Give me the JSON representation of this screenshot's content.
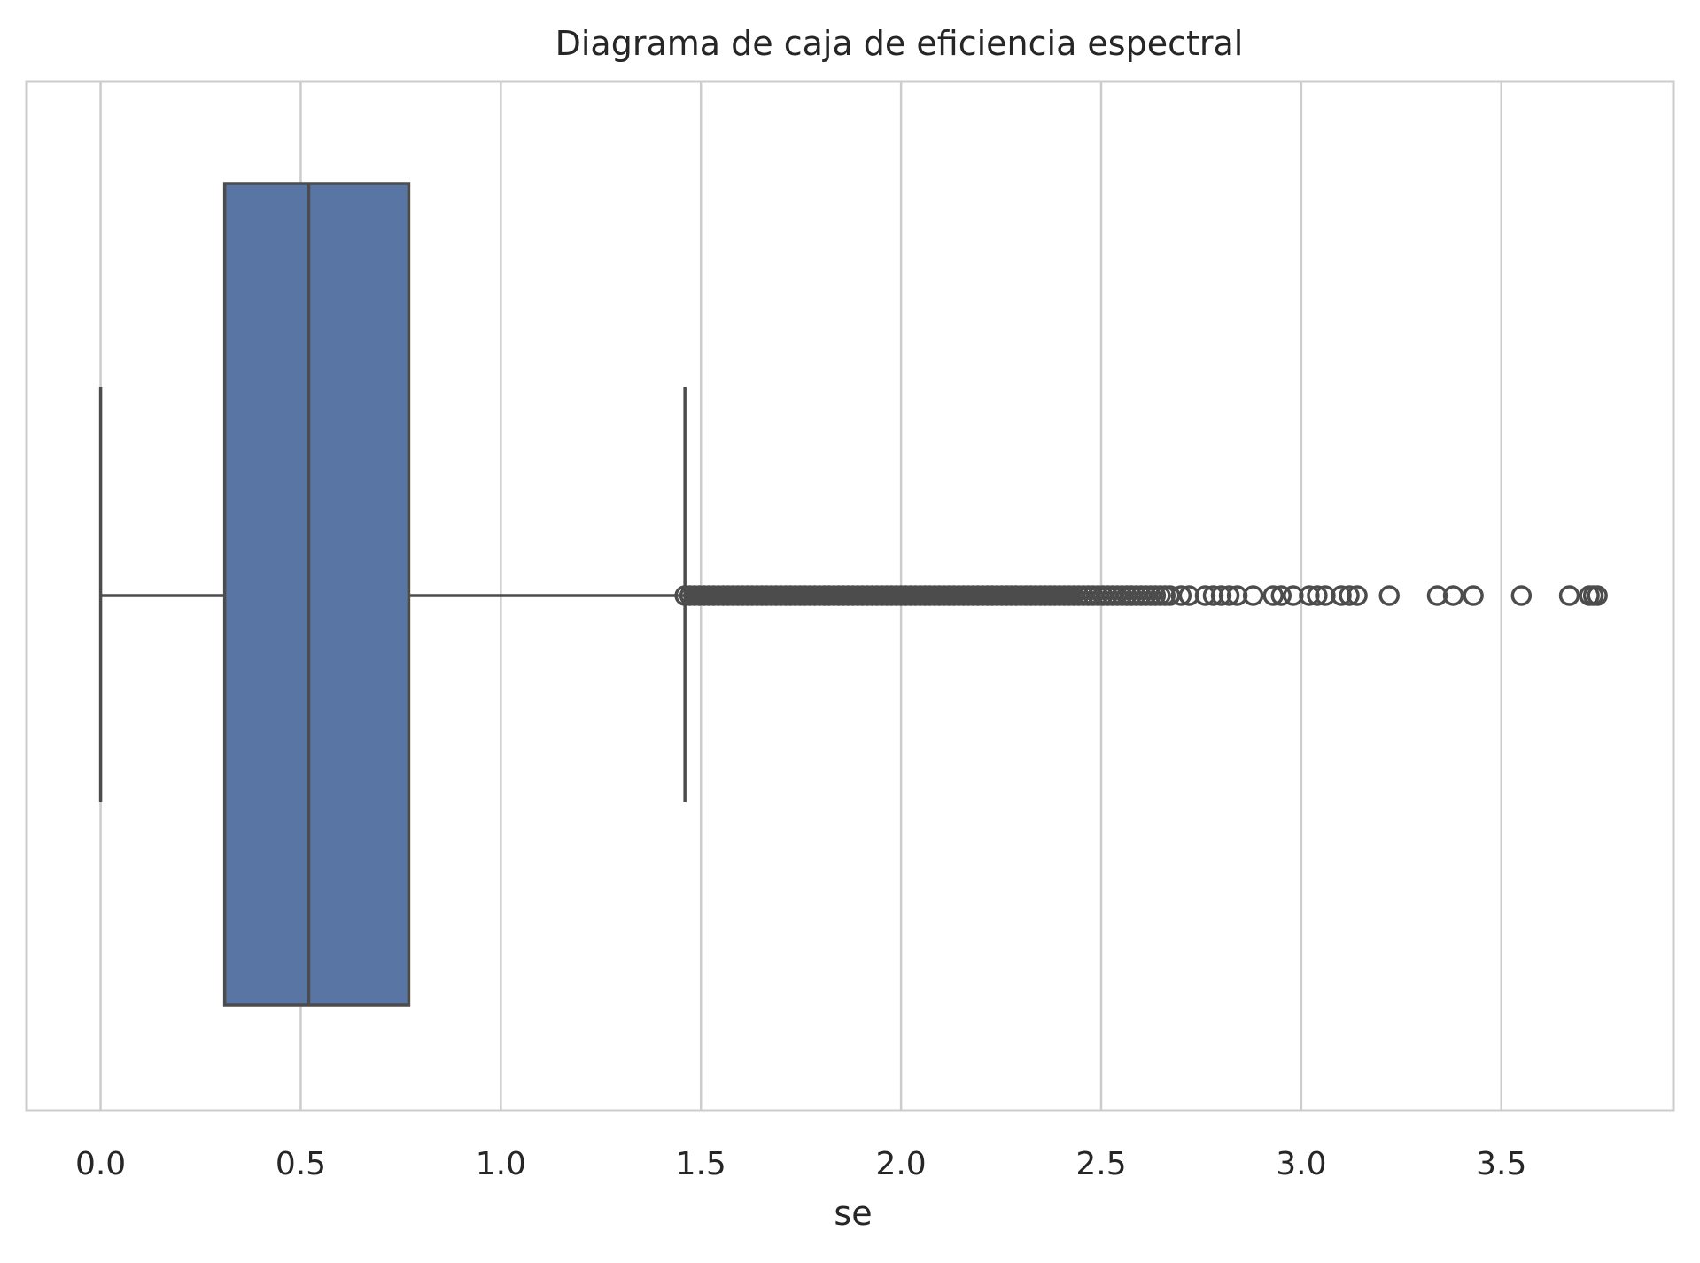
{
  "chart_data": {
    "type": "box",
    "orientation": "horizontal",
    "title": "Diagrama de caja de eficiencia espectral",
    "xlabel": "se",
    "ylabel": "",
    "xlim": [
      -0.185,
      3.93
    ],
    "x_ticks": [
      0.0,
      0.5,
      1.0,
      1.5,
      2.0,
      2.5,
      3.0,
      3.5
    ],
    "x_tick_labels": [
      "0.0",
      "0.5",
      "1.0",
      "1.5",
      "2.0",
      "2.5",
      "3.0",
      "3.5"
    ],
    "grid": "vertical",
    "box": {
      "whisker_low": 0.0,
      "q1": 0.31,
      "median": 0.52,
      "q3": 0.77,
      "whisker_high": 1.46
    },
    "outlier_dense_range": [
      1.46,
      2.68
    ],
    "outliers": [
      2.7,
      2.72,
      2.76,
      2.78,
      2.8,
      2.82,
      2.84,
      2.88,
      2.93,
      2.95,
      2.98,
      3.02,
      3.04,
      3.06,
      3.1,
      3.12,
      3.14,
      3.22,
      3.34,
      3.38,
      3.43,
      3.55,
      3.67,
      3.72,
      3.73,
      3.74
    ],
    "colors": {
      "box_fill": "#5975a4",
      "line": "#4c4c4c",
      "grid": "#cccccc",
      "frame": "#cccccc"
    }
  }
}
